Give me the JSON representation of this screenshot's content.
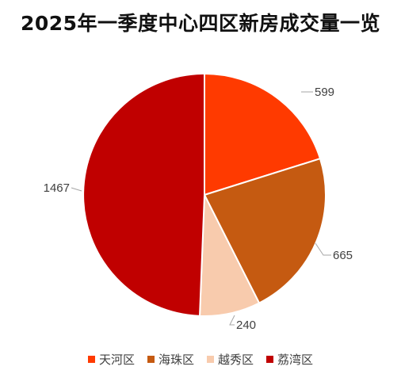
{
  "chart_data": {
    "type": "pie",
    "title": "2025年一季度中心四区新房成交量一览",
    "categories": [
      "天河区",
      "海珠区",
      "越秀区",
      "荔湾区"
    ],
    "values": [
      599,
      665,
      240,
      1467
    ],
    "colors": [
      "#ff3a00",
      "#c55a11",
      "#f8cbad",
      "#c00000"
    ],
    "data_labels": [
      "599",
      "665",
      "240",
      "1467"
    ],
    "start_angle_deg": 0,
    "direction": "clockwise",
    "legend": {
      "position": "bottom",
      "entries": [
        "天河区",
        "海珠区",
        "越秀区",
        "荔湾区"
      ]
    }
  }
}
